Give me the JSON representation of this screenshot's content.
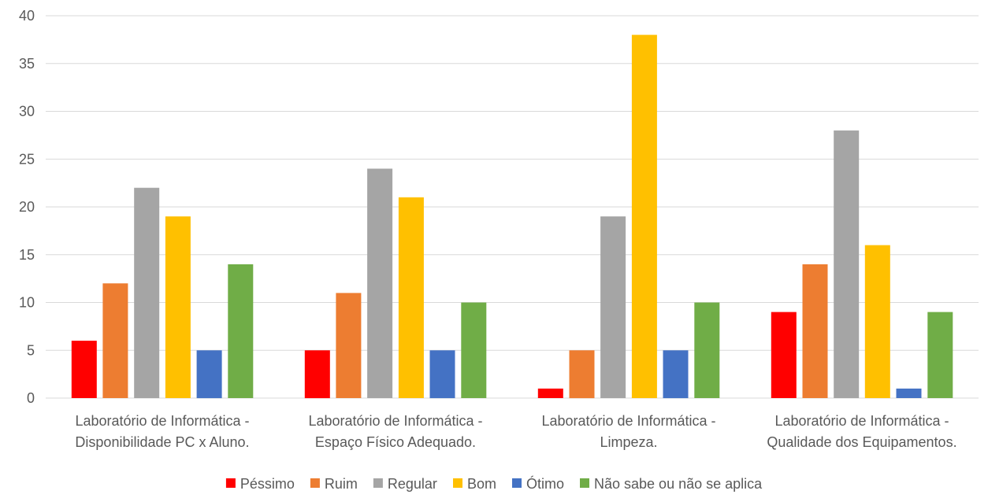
{
  "chart_data": {
    "type": "bar",
    "title": "",
    "xlabel": "",
    "ylabel": "",
    "ylim": [
      0,
      40
    ],
    "yticks": [
      0,
      5,
      10,
      15,
      20,
      25,
      30,
      35,
      40
    ],
    "grid": true,
    "legend_position": "bottom",
    "categories": [
      [
        "Laboratório de Informática -",
        "Disponibilidade PC x Aluno."
      ],
      [
        "Laboratório de Informática -",
        "Espaço Físico Adequado."
      ],
      [
        "Laboratório de Informática -",
        "Limpeza."
      ],
      [
        "Laboratório de Informática -",
        "Qualidade dos Equipamentos."
      ]
    ],
    "series": [
      {
        "name": "Péssimo",
        "color": "#ff0000",
        "values": [
          6,
          5,
          1,
          9
        ]
      },
      {
        "name": "Ruim",
        "color": "#ed7d31",
        "values": [
          12,
          11,
          5,
          14
        ]
      },
      {
        "name": "Regular",
        "color": "#a5a5a5",
        "values": [
          22,
          24,
          19,
          28
        ]
      },
      {
        "name": "Bom",
        "color": "#ffc000",
        "values": [
          19,
          21,
          38,
          16
        ]
      },
      {
        "name": "Ótimo",
        "color": "#4472c4",
        "values": [
          5,
          5,
          5,
          1
        ]
      },
      {
        "name": "Não sabe ou não se aplica",
        "color": "#70ad47",
        "values": [
          14,
          10,
          10,
          9
        ]
      }
    ]
  }
}
